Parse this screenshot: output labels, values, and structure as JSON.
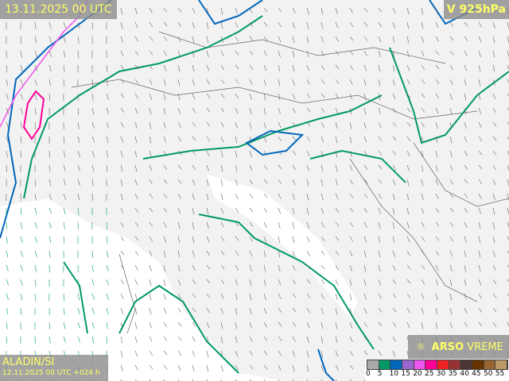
{
  "header": {
    "title": "13.11.2025 00 UTC",
    "level": "V 925hPa"
  },
  "model": {
    "name": "ALADIN/SI",
    "run": "12.11.2025 00 UTC +024 h"
  },
  "logo": {
    "brand": "ARSO",
    "product": "VREME",
    "icon": "sun-icon"
  },
  "legend": {
    "unit_ticks": [
      "0",
      "5",
      "10",
      "15",
      "20",
      "25",
      "30",
      "35",
      "40",
      "45",
      "50",
      "55"
    ],
    "colors": [
      "#a8a8a8",
      "#009966",
      "#0066bb",
      "#9966cc",
      "#ee55ee",
      "#ff0099",
      "#ee2222",
      "#993333",
      "#4d3333",
      "#663300",
      "#996633",
      "#bb9966"
    ]
  },
  "contour_colors": {
    "5": "#009966",
    "10": "#0066bb",
    "15": "#9966cc",
    "20": "#ee55ee",
    "25": "#ff0099"
  }
}
